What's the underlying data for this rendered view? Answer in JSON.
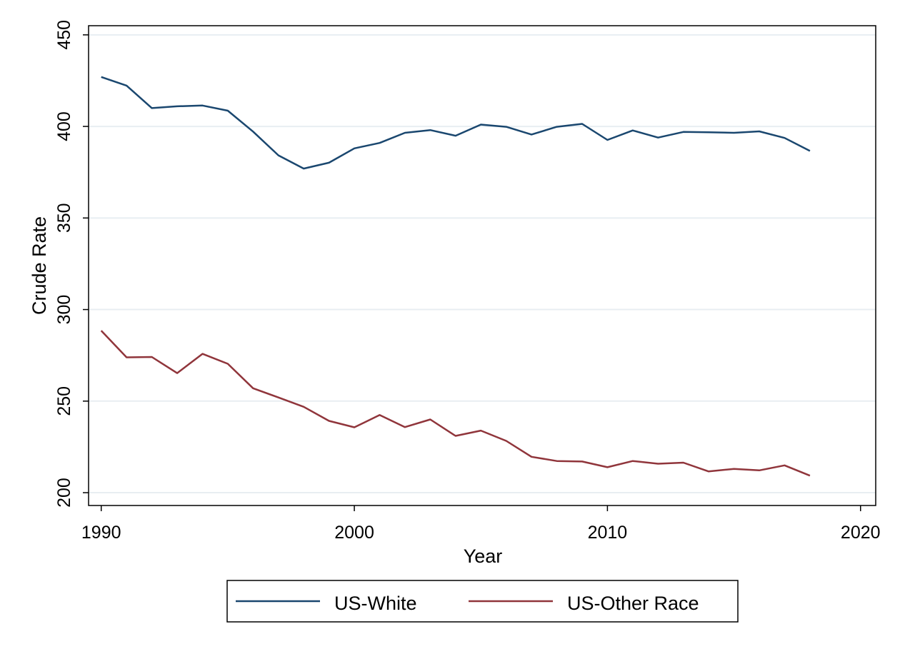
{
  "chart_data": {
    "type": "line",
    "title": "",
    "xlabel": "Year",
    "ylabel": "Crude Rate",
    "xlim": [
      1989.5,
      2020.6
    ],
    "ylim": [
      193,
      455
    ],
    "x_ticks": [
      1990,
      2000,
      2010,
      2020
    ],
    "x_tick_labels": [
      "1990",
      "2000",
      "2010",
      "2020"
    ],
    "y_ticks": [
      200,
      250,
      300,
      350,
      400,
      450
    ],
    "y_tick_labels": [
      "200",
      "250",
      "300",
      "350",
      "400",
      "450"
    ],
    "grid": true,
    "legend_position": "bottom",
    "x": [
      1990,
      1991,
      1992,
      1993,
      1994,
      1995,
      1996,
      1997,
      1998,
      1999,
      2000,
      2001,
      2002,
      2003,
      2004,
      2005,
      2006,
      2007,
      2008,
      2009,
      2010,
      2011,
      2012,
      2013,
      2014,
      2015,
      2016,
      2017,
      2018
    ],
    "series": [
      {
        "name": "US-White",
        "color": "#1a476f",
        "values": [
          427,
          422.3,
          410,
          411,
          411.4,
          408.6,
          397.2,
          384.2,
          377,
          380.2,
          388,
          391,
          396.5,
          398,
          394.9,
          401,
          399.8,
          395.6,
          399.8,
          401.4,
          392.6,
          397.8,
          393.9,
          397,
          396.8,
          396.5,
          397.3,
          393.7,
          386.6
        ]
      },
      {
        "name": "US-Other Race",
        "color": "#90353b",
        "values": [
          288.5,
          273.9,
          274.1,
          265.3,
          275.8,
          270.4,
          257,
          252,
          246.9,
          239.2,
          235.7,
          242.4,
          235.8,
          240,
          231,
          233.9,
          228.3,
          219.6,
          217.3,
          217,
          213.9,
          217.3,
          215.8,
          216.4,
          211.6,
          213,
          212.2,
          214.9,
          209.3
        ]
      }
    ]
  }
}
